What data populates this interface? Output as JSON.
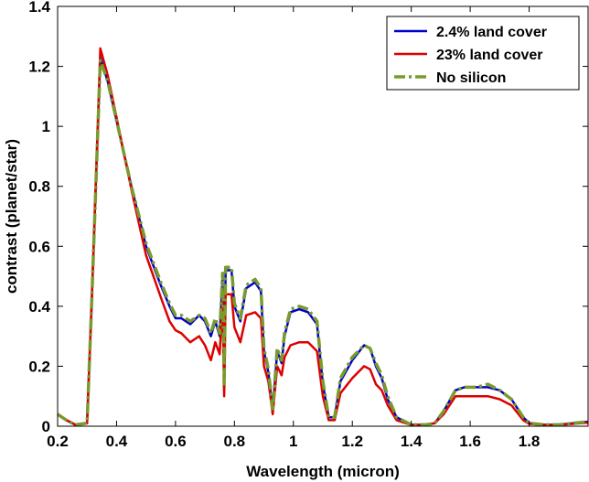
{
  "chart_data": {
    "type": "line",
    "title": "",
    "xlabel": "Wavelength (micron)",
    "ylabel": "contrast (planet/star)",
    "xlim": [
      0.2,
      2.0
    ],
    "ylim": [
      0,
      1.4
    ],
    "xticks": [
      0.2,
      0.4,
      0.6,
      0.8,
      1.0,
      1.2,
      1.4,
      1.6,
      1.8
    ],
    "xtick_labels": [
      "0.2",
      "0.4",
      "0.6",
      "0.8",
      "1",
      "1.2",
      "1.4",
      "1.6",
      "1.8"
    ],
    "yticks": [
      0,
      0.2,
      0.4,
      0.6,
      0.8,
      1.0,
      1.2,
      1.4
    ],
    "ytick_labels": [
      "0",
      "0.2",
      "0.4",
      "0.6",
      "0.8",
      "1",
      "1.2",
      "1.4"
    ],
    "grid": false,
    "legend_position": "top-right",
    "series": [
      {
        "name": "2.4% land cover",
        "color": "#0000cc",
        "style": "solid",
        "points": [
          [
            0.2,
            0.04
          ],
          [
            0.23,
            0.02
          ],
          [
            0.26,
            0.005
          ],
          [
            0.3,
            0.01
          ],
          [
            0.315,
            0.4
          ],
          [
            0.345,
            1.23
          ],
          [
            0.37,
            1.15
          ],
          [
            0.4,
            1.02
          ],
          [
            0.45,
            0.8
          ],
          [
            0.5,
            0.6
          ],
          [
            0.55,
            0.47
          ],
          [
            0.58,
            0.4
          ],
          [
            0.6,
            0.36
          ],
          [
            0.62,
            0.36
          ],
          [
            0.65,
            0.34
          ],
          [
            0.68,
            0.37
          ],
          [
            0.7,
            0.35
          ],
          [
            0.72,
            0.3
          ],
          [
            0.735,
            0.35
          ],
          [
            0.75,
            0.3
          ],
          [
            0.76,
            0.5
          ],
          [
            0.765,
            0.12
          ],
          [
            0.77,
            0.52
          ],
          [
            0.79,
            0.52
          ],
          [
            0.8,
            0.4
          ],
          [
            0.82,
            0.35
          ],
          [
            0.84,
            0.46
          ],
          [
            0.87,
            0.48
          ],
          [
            0.89,
            0.45
          ],
          [
            0.9,
            0.25
          ],
          [
            0.915,
            0.18
          ],
          [
            0.93,
            0.05
          ],
          [
            0.945,
            0.25
          ],
          [
            0.96,
            0.21
          ],
          [
            0.97,
            0.3
          ],
          [
            0.99,
            0.38
          ],
          [
            1.02,
            0.39
          ],
          [
            1.05,
            0.38
          ],
          [
            1.08,
            0.34
          ],
          [
            1.1,
            0.14
          ],
          [
            1.12,
            0.03
          ],
          [
            1.14,
            0.03
          ],
          [
            1.16,
            0.15
          ],
          [
            1.2,
            0.22
          ],
          [
            1.24,
            0.27
          ],
          [
            1.26,
            0.26
          ],
          [
            1.28,
            0.2
          ],
          [
            1.3,
            0.16
          ],
          [
            1.32,
            0.09
          ],
          [
            1.35,
            0.03
          ],
          [
            1.4,
            0.005
          ],
          [
            1.45,
            0.005
          ],
          [
            1.48,
            0.01
          ],
          [
            1.51,
            0.05
          ],
          [
            1.55,
            0.12
          ],
          [
            1.58,
            0.13
          ],
          [
            1.62,
            0.13
          ],
          [
            1.66,
            0.13
          ],
          [
            1.7,
            0.12
          ],
          [
            1.74,
            0.09
          ],
          [
            1.78,
            0.03
          ],
          [
            1.8,
            0.01
          ],
          [
            1.85,
            0.005
          ],
          [
            1.9,
            0.005
          ],
          [
            1.95,
            0.01
          ],
          [
            2.0,
            0.015
          ]
        ]
      },
      {
        "name": "23% land cover",
        "color": "#dd0000",
        "style": "solid",
        "points": [
          [
            0.2,
            0.04
          ],
          [
            0.23,
            0.02
          ],
          [
            0.26,
            0.005
          ],
          [
            0.3,
            0.01
          ],
          [
            0.315,
            0.4
          ],
          [
            0.345,
            1.26
          ],
          [
            0.37,
            1.17
          ],
          [
            0.4,
            1.03
          ],
          [
            0.45,
            0.79
          ],
          [
            0.5,
            0.57
          ],
          [
            0.55,
            0.43
          ],
          [
            0.58,
            0.35
          ],
          [
            0.6,
            0.32
          ],
          [
            0.62,
            0.31
          ],
          [
            0.65,
            0.28
          ],
          [
            0.68,
            0.3
          ],
          [
            0.7,
            0.27
          ],
          [
            0.72,
            0.22
          ],
          [
            0.735,
            0.28
          ],
          [
            0.75,
            0.24
          ],
          [
            0.76,
            0.42
          ],
          [
            0.765,
            0.1
          ],
          [
            0.77,
            0.44
          ],
          [
            0.79,
            0.44
          ],
          [
            0.8,
            0.33
          ],
          [
            0.82,
            0.28
          ],
          [
            0.84,
            0.37
          ],
          [
            0.87,
            0.38
          ],
          [
            0.89,
            0.36
          ],
          [
            0.9,
            0.2
          ],
          [
            0.915,
            0.15
          ],
          [
            0.93,
            0.04
          ],
          [
            0.945,
            0.2
          ],
          [
            0.96,
            0.17
          ],
          [
            0.97,
            0.23
          ],
          [
            0.99,
            0.27
          ],
          [
            1.02,
            0.28
          ],
          [
            1.05,
            0.28
          ],
          [
            1.08,
            0.25
          ],
          [
            1.1,
            0.1
          ],
          [
            1.12,
            0.02
          ],
          [
            1.14,
            0.02
          ],
          [
            1.16,
            0.11
          ],
          [
            1.2,
            0.16
          ],
          [
            1.24,
            0.2
          ],
          [
            1.26,
            0.19
          ],
          [
            1.28,
            0.14
          ],
          [
            1.3,
            0.12
          ],
          [
            1.32,
            0.07
          ],
          [
            1.35,
            0.02
          ],
          [
            1.4,
            0.004
          ],
          [
            1.45,
            0.004
          ],
          [
            1.48,
            0.01
          ],
          [
            1.51,
            0.04
          ],
          [
            1.55,
            0.1
          ],
          [
            1.58,
            0.1
          ],
          [
            1.62,
            0.1
          ],
          [
            1.66,
            0.1
          ],
          [
            1.7,
            0.09
          ],
          [
            1.74,
            0.07
          ],
          [
            1.78,
            0.02
          ],
          [
            1.8,
            0.008
          ],
          [
            1.85,
            0.004
          ],
          [
            1.9,
            0.004
          ],
          [
            1.95,
            0.008
          ],
          [
            2.0,
            0.012
          ]
        ]
      },
      {
        "name": "No silicon",
        "color": "#7a9a2e",
        "style": "dashdot",
        "points": [
          [
            0.2,
            0.04
          ],
          [
            0.23,
            0.02
          ],
          [
            0.26,
            0.005
          ],
          [
            0.3,
            0.01
          ],
          [
            0.315,
            0.4
          ],
          [
            0.345,
            1.22
          ],
          [
            0.37,
            1.15
          ],
          [
            0.4,
            1.02
          ],
          [
            0.45,
            0.8
          ],
          [
            0.5,
            0.61
          ],
          [
            0.55,
            0.48
          ],
          [
            0.58,
            0.41
          ],
          [
            0.6,
            0.37
          ],
          [
            0.62,
            0.37
          ],
          [
            0.65,
            0.35
          ],
          [
            0.68,
            0.37
          ],
          [
            0.7,
            0.36
          ],
          [
            0.72,
            0.31
          ],
          [
            0.735,
            0.36
          ],
          [
            0.75,
            0.31
          ],
          [
            0.76,
            0.51
          ],
          [
            0.765,
            0.13
          ],
          [
            0.77,
            0.53
          ],
          [
            0.79,
            0.53
          ],
          [
            0.8,
            0.41
          ],
          [
            0.82,
            0.36
          ],
          [
            0.84,
            0.47
          ],
          [
            0.87,
            0.49
          ],
          [
            0.89,
            0.46
          ],
          [
            0.9,
            0.26
          ],
          [
            0.915,
            0.19
          ],
          [
            0.93,
            0.05
          ],
          [
            0.945,
            0.26
          ],
          [
            0.96,
            0.22
          ],
          [
            0.97,
            0.31
          ],
          [
            0.99,
            0.39
          ],
          [
            1.02,
            0.4
          ],
          [
            1.05,
            0.39
          ],
          [
            1.08,
            0.35
          ],
          [
            1.1,
            0.15
          ],
          [
            1.12,
            0.03
          ],
          [
            1.14,
            0.03
          ],
          [
            1.16,
            0.16
          ],
          [
            1.2,
            0.23
          ],
          [
            1.24,
            0.27
          ],
          [
            1.26,
            0.26
          ],
          [
            1.28,
            0.21
          ],
          [
            1.3,
            0.17
          ],
          [
            1.32,
            0.1
          ],
          [
            1.35,
            0.03
          ],
          [
            1.4,
            0.005
          ],
          [
            1.45,
            0.005
          ],
          [
            1.48,
            0.01
          ],
          [
            1.51,
            0.05
          ],
          [
            1.55,
            0.12
          ],
          [
            1.58,
            0.13
          ],
          [
            1.62,
            0.13
          ],
          [
            1.66,
            0.14
          ],
          [
            1.7,
            0.12
          ],
          [
            1.74,
            0.09
          ],
          [
            1.78,
            0.03
          ],
          [
            1.8,
            0.01
          ],
          [
            1.85,
            0.005
          ],
          [
            1.9,
            0.005
          ],
          [
            1.95,
            0.01
          ],
          [
            2.0,
            0.015
          ]
        ]
      }
    ]
  }
}
